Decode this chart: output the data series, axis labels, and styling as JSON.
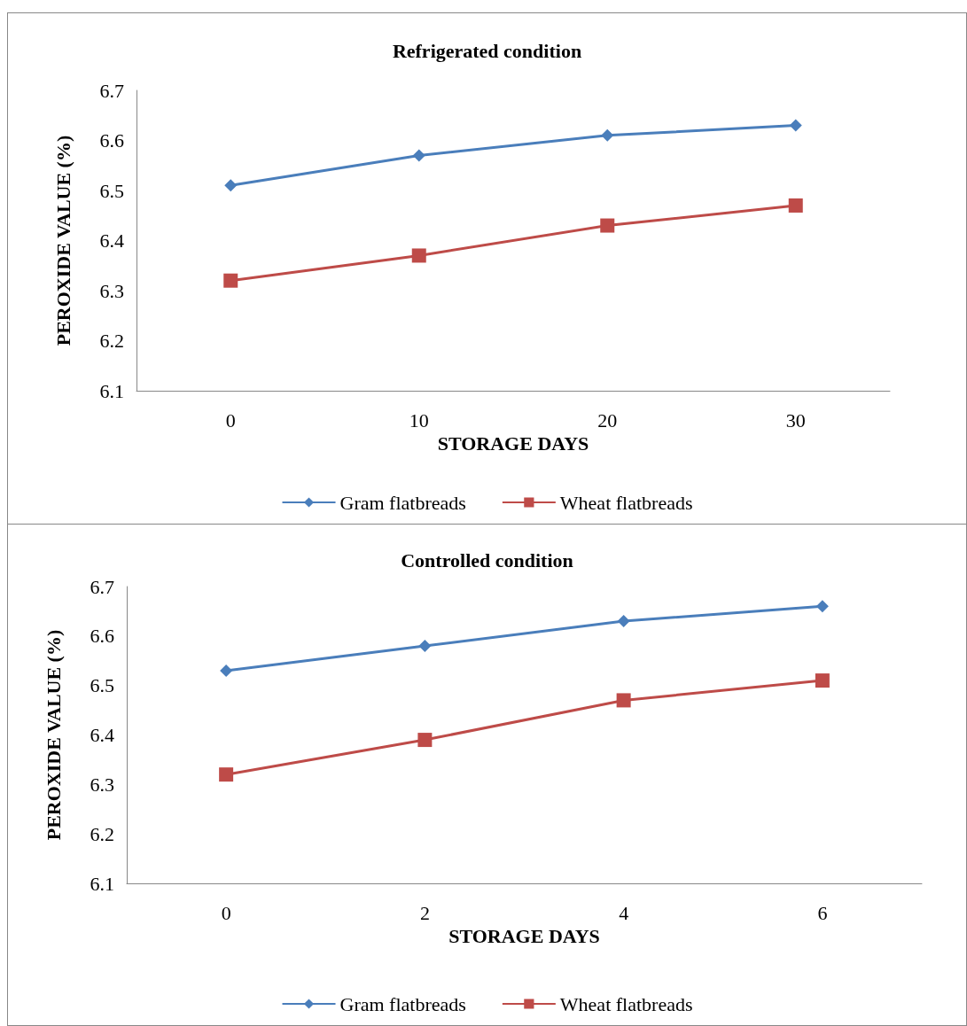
{
  "chart_data": [
    {
      "type": "line",
      "title": "Refrigerated condition",
      "xlabel": "STORAGE DAYS",
      "ylabel": "PEROXIDE VALUE (%)",
      "categories": [
        "0",
        "10",
        "20",
        "30"
      ],
      "ylim": [
        6.1,
        6.7
      ],
      "yticks": [
        6.1,
        6.2,
        6.3,
        6.4,
        6.5,
        6.6,
        6.7
      ],
      "grid": false,
      "legend": "bottom",
      "line_style": "solid",
      "series": [
        {
          "name": "Gram flatbreads",
          "color": "#4a7ebb",
          "marker": "diamond",
          "values": [
            6.51,
            6.57,
            6.61,
            6.63
          ]
        },
        {
          "name": "Wheat flatbreads",
          "color": "#be4b48",
          "marker": "square",
          "values": [
            6.32,
            6.37,
            6.43,
            6.47
          ]
        }
      ]
    },
    {
      "type": "line",
      "title": "Controlled condition",
      "xlabel": "STORAGE DAYS",
      "ylabel": "PEROXIDE VALUE (%)",
      "categories": [
        "0",
        "2",
        "4",
        "6"
      ],
      "ylim": [
        6.1,
        6.7
      ],
      "yticks": [
        6.1,
        6.2,
        6.3,
        6.4,
        6.5,
        6.6,
        6.7
      ],
      "grid": false,
      "legend": "bottom",
      "line_style": "solid",
      "series": [
        {
          "name": "Gram flatbreads",
          "color": "#4a7ebb",
          "marker": "diamond",
          "values": [
            6.53,
            6.58,
            6.63,
            6.66
          ]
        },
        {
          "name": "Wheat flatbreads",
          "color": "#be4b48",
          "marker": "square",
          "values": [
            6.32,
            6.39,
            6.47,
            6.51
          ]
        }
      ]
    }
  ]
}
